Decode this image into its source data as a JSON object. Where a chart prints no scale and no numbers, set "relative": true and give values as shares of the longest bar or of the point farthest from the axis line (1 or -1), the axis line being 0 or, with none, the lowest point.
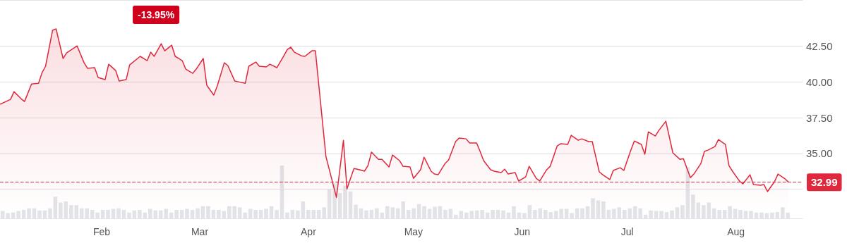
{
  "chart_data": [
    {
      "type": "area",
      "annotations": [
        "-13.95%"
      ],
      "x": [
        "--01-03",
        "--01-06",
        "--01-07",
        "--01-09",
        "--01-10",
        "--01-12",
        "--01-14",
        "--01-15",
        "--01-16",
        "--01-18",
        "--01-19",
        "--01-21",
        "--01-22",
        "--01-25",
        "--01-27",
        "--01-28",
        "--01-30",
        "--01-31",
        "--02-02",
        "--02-03",
        "--02-05",
        "--02-06",
        "--02-08",
        "--02-09",
        "--02-12",
        "--02-14",
        "--02-15",
        "--02-16",
        "--02-18",
        "--02-19",
        "--02-21",
        "--02-22",
        "--02-24",
        "--02-25",
        "--02-27",
        "--02-28",
        "--03-02",
        "--03-03",
        "--03-05",
        "--03-06",
        "--03-08",
        "--03-09",
        "--03-11",
        "--03-12",
        "--03-14",
        "--03-15",
        "--03-17",
        "--03-18",
        "--03-20",
        "--03-21",
        "--03-23",
        "--03-25",
        "--03-26",
        "--03-27",
        "--03-28",
        "--03-30",
        "--03-31",
        "--04-02",
        "--04-03",
        "--04-06",
        "--04-09",
        "--04-11",
        "--04-12",
        "--04-14",
        "--04-15",
        "--04-17",
        "--04-18",
        "--04-19",
        "--04-21",
        "--04-22",
        "--04-24",
        "--04-25",
        "--04-27",
        "--04-28",
        "--04-30",
        "--05-01",
        "--05-03",
        "--05-04",
        "--05-06",
        "--05-07",
        "--05-08",
        "--05-10",
        "--05-11",
        "--05-13",
        "--05-14",
        "--05-16",
        "--05-17",
        "--05-19",
        "--05-20",
        "--05-21",
        "--05-23",
        "--05-24",
        "--05-26",
        "--05-27",
        "--05-28",
        "--05-30",
        "--05-31",
        "--06-02",
        "--06-03",
        "--06-05",
        "--06-06",
        "--06-08",
        "--06-09",
        "--06-11",
        "--06-12",
        "--06-14",
        "--06-15",
        "--06-17",
        "--06-18",
        "--06-20",
        "--06-21",
        "--06-23",
        "--06-24",
        "--06-26",
        "--06-27",
        "--06-29",
        "--06-30",
        "--07-02",
        "--07-03",
        "--07-05",
        "--07-06",
        "--07-07",
        "--07-09",
        "--07-10",
        "--07-12",
        "--07-14",
        "--07-16",
        "--07-17",
        "--07-19",
        "--07-20",
        "--07-22",
        "--07-23",
        "--07-24",
        "--07-26",
        "--07-27",
        "--07-29",
        "--07-30",
        "--07-31",
        "--08-02",
        "--08-03",
        "--08-05",
        "--08-06",
        "--08-08",
        "--08-09",
        "--08-10",
        "--08-12",
        "--08-13",
        "--08-15",
        "--08-16"
      ],
      "values": [
        38.44,
        38.78,
        39.32,
        38.83,
        38.63,
        39.86,
        39.91,
        40.65,
        41.1,
        43.61,
        43.71,
        41.64,
        42.03,
        42.52,
        41.34,
        40.95,
        41.0,
        40.31,
        40.16,
        41.24,
        40.8,
        40.06,
        40.16,
        41.19,
        41.79,
        41.49,
        42.08,
        41.79,
        42.67,
        42.18,
        42.57,
        41.79,
        41.49,
        40.9,
        40.6,
        40.9,
        41.64,
        39.77,
        39.08,
        39.72,
        41.34,
        41.15,
        40.06,
        40.01,
        39.91,
        41.1,
        41.39,
        41.1,
        41.05,
        41.24,
        41.0,
        41.83,
        42.28,
        42.43,
        42.08,
        41.83,
        41.79,
        42.18,
        42.18,
        34.79,
        31.93,
        35.92,
        32.52,
        33.95,
        33.9,
        33.76,
        34.15,
        35.09,
        34.59,
        34.59,
        34.05,
        34.89,
        34.5,
        34.1,
        34.05,
        33.26,
        33.86,
        34.74,
        33.76,
        33.56,
        33.51,
        34.3,
        34.54,
        35.83,
        36.07,
        36.02,
        35.73,
        35.73,
        35.14,
        34.5,
        33.86,
        33.76,
        33.66,
        33.9,
        33.56,
        33.66,
        33.07,
        33.36,
        34.1,
        33.26,
        33.07,
        33.86,
        34.1,
        35.53,
        35.68,
        35.63,
        36.27,
        35.92,
        36.02,
        35.83,
        35.83,
        33.71,
        33.51,
        33.17,
        33.81,
        34.0,
        33.81,
        35.23,
        35.87,
        35.63,
        34.94,
        36.51,
        36.22,
        36.61,
        37.25,
        35.04,
        34.59,
        34.64,
        33.31,
        33.56,
        34.3,
        35.14,
        35.23,
        35.48,
        35.97,
        35.63,
        34.15,
        33.76,
        33.07,
        32.87,
        33.51,
        32.82,
        32.77,
        32.82,
        32.33,
        33.02,
        33.56,
        33.22,
        32.99
      ],
      "color": "#e0283c",
      "marker": "none",
      "grid": "y",
      "xlim": [
        "--01-03",
        "--08-20"
      ],
      "xticks": [
        {
          "value": "--02-01",
          "label": "Feb"
        },
        {
          "value": "--03-01",
          "label": "Mar"
        },
        {
          "value": "--04-01",
          "label": "Apr"
        },
        {
          "value": "--05-01",
          "label": "May"
        },
        {
          "value": "--06-01",
          "label": "Jun"
        },
        {
          "value": "--07-01",
          "label": "Jul"
        },
        {
          "value": "--08-01",
          "label": "Aug"
        }
      ],
      "ylim": [
        30.46,
        45.73
      ],
      "yticks": [
        {
          "value": 32.5,
          "label": null
        },
        {
          "value": 35,
          "label": "35.00"
        },
        {
          "value": 37.5,
          "label": "37.50"
        },
        {
          "value": 40,
          "label": "40.00"
        },
        {
          "value": 42.5,
          "label": "42.50"
        }
      ],
      "ref_lines": [
        {
          "axis": "y",
          "value": 32.99,
          "label": "32.99",
          "color": "#e0283c",
          "line_style": "dashed"
        }
      ]
    },
    {
      "type": "bar",
      "relative": true,
      "color": "#e2e4e8",
      "categories": [
        null,
        null,
        null,
        null,
        null,
        null,
        null,
        null,
        null,
        null,
        null,
        null,
        null,
        null,
        null,
        null,
        null,
        null,
        null,
        null,
        null,
        null,
        null,
        null,
        null,
        null,
        null,
        null,
        null,
        null,
        null,
        null,
        null,
        null,
        null,
        null,
        null,
        null,
        null,
        null,
        null,
        null,
        null,
        null,
        null,
        null,
        null,
        null,
        null,
        null,
        null,
        null,
        null,
        null,
        null,
        null,
        null,
        null,
        null,
        null,
        null,
        null,
        null,
        null,
        null,
        null,
        null,
        null,
        null,
        null,
        null,
        null,
        null,
        null,
        null,
        null,
        null,
        null,
        null,
        null,
        null,
        null,
        null,
        null,
        null,
        null,
        null,
        null,
        null,
        null,
        null,
        null,
        null,
        null,
        null,
        null,
        null,
        null,
        null,
        null,
        null,
        null,
        null,
        null,
        null,
        null,
        null,
        null,
        null,
        null,
        null,
        null,
        null,
        null,
        null,
        null,
        null,
        null,
        null,
        null,
        null,
        null,
        null,
        null,
        null,
        null,
        null,
        null,
        null,
        null,
        null,
        null,
        null,
        null,
        null,
        null,
        null,
        null,
        null,
        null,
        null,
        null,
        null,
        null,
        null,
        null,
        null,
        null,
        null,
        null
      ],
      "values": [
        0.14,
        0.1,
        0.11,
        0.14,
        0.16,
        0.19,
        0.19,
        0.15,
        0.15,
        0.19,
        0.41,
        0.3,
        0.32,
        0.25,
        0.25,
        0.19,
        0.19,
        0.16,
        0.11,
        0.16,
        0.16,
        0.18,
        0.19,
        0.16,
        0.11,
        0.15,
        0.16,
        0.11,
        0.18,
        0.15,
        0.15,
        0.18,
        0.11,
        0.16,
        0.16,
        0.18,
        0.16,
        0.19,
        0.23,
        0.23,
        0.16,
        0.16,
        0.14,
        0.23,
        0.23,
        0.21,
        0.11,
        0.18,
        0.16,
        0.16,
        0.18,
        0.23,
        0.16,
        1,
        0.11,
        0.16,
        0.15,
        0.32,
        0.16,
        0.16,
        0.16,
        0.21,
        0.55,
        0.66,
        0.48,
        0.62,
        0.51,
        0.26,
        0.19,
        0.15,
        0.16,
        0.19,
        0.11,
        0.23,
        0.21,
        0.19,
        0.32,
        0.16,
        0.19,
        0.27,
        0.23,
        0.18,
        0.22,
        0.23,
        0.16,
        0.18,
        0.07,
        0.14,
        0.11,
        0.14,
        0.15,
        0.16,
        0.11,
        0.16,
        0.16,
        0.15,
        0.11,
        0.23,
        0.11,
        0.1,
        0.25,
        0.16,
        0.19,
        0.16,
        0.12,
        0.14,
        0.18,
        0.18,
        0.1,
        0.19,
        0.19,
        0.23,
        0.38,
        0.34,
        0.32,
        0.16,
        0.18,
        0.21,
        0.16,
        0.19,
        0.23,
        0.19,
        0.07,
        0.15,
        0.14,
        0.14,
        0.12,
        0.15,
        0.21,
        0.25,
        0.97,
        0.45,
        0.3,
        0.25,
        0.3,
        0.19,
        0.16,
        0.16,
        0.23,
        0.18,
        0.16,
        0.14,
        0.14,
        0.11,
        0.11,
        0.1,
        0.11,
        0.12,
        0.21,
        0.11
      ]
    }
  ]
}
